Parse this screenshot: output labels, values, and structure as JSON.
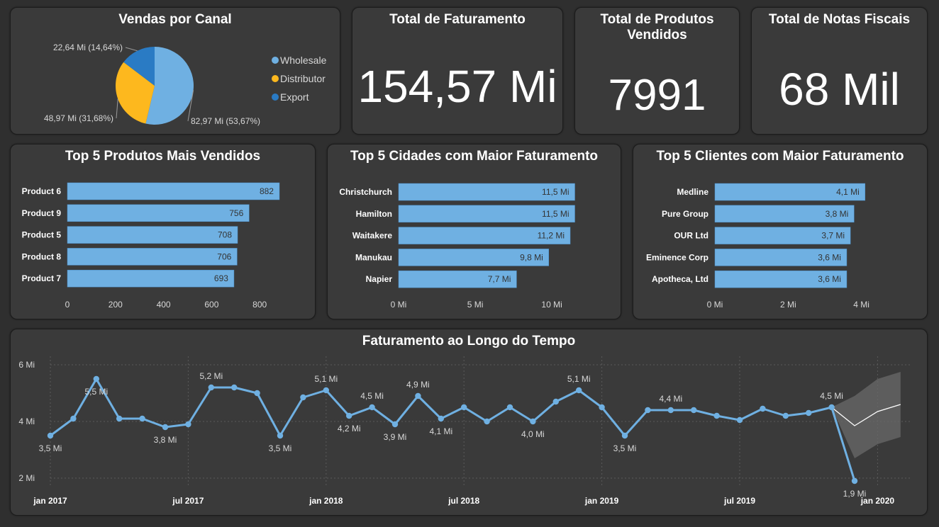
{
  "pie": {
    "title": "Vendas por Canal",
    "slices": [
      {
        "name": "Wholesale",
        "value": 82.97,
        "label": "82,97 Mi (53,67%)",
        "color": "#6fb0e2"
      },
      {
        "name": "Distributor",
        "value": 48.97,
        "label": "48,97 Mi (31,68%)",
        "color": "#fdb81e"
      },
      {
        "name": "Export",
        "value": 22.64,
        "label": "22,64 Mi (14,64%)",
        "color": "#2a7bc4"
      }
    ]
  },
  "kpis": {
    "faturamento": {
      "title": "Total de Faturamento",
      "value": "154,57 Mi"
    },
    "produtos": {
      "title_line1": "Total de Produtos",
      "title_line2": "Vendidos",
      "value": "7991"
    },
    "notas": {
      "title": "Total de Notas Fiscais",
      "value": "68 Mil"
    }
  },
  "top_produtos": {
    "title": "Top 5 Produtos Mais Vendidos",
    "categories": [
      "Product 6",
      "Product 9",
      "Product 5",
      "Product 8",
      "Product 7"
    ],
    "values": [
      882,
      756,
      708,
      706,
      693
    ],
    "value_labels": [
      "882",
      "756",
      "708",
      "706",
      "693"
    ],
    "ticks": [
      0,
      200,
      400,
      600,
      800
    ],
    "tick_labels": [
      "0",
      "200",
      "400",
      "600",
      "800"
    ]
  },
  "top_cidades": {
    "title": "Top 5 Cidades com Maior Faturamento",
    "categories": [
      "Christchurch",
      "Hamilton",
      "Waitakere",
      "Manukau",
      "Napier"
    ],
    "values": [
      11.5,
      11.5,
      11.2,
      9.8,
      7.7
    ],
    "value_labels": [
      "11,5 Mi",
      "11,5 Mi",
      "11,2 Mi",
      "9,8 Mi",
      "7,7 Mi"
    ],
    "ticks": [
      0,
      5,
      10
    ],
    "tick_labels": [
      "0 Mi",
      "5 Mi",
      "10 Mi"
    ]
  },
  "top_clientes": {
    "title": "Top 5 Clientes com Maior Faturamento",
    "categories": [
      "Medline",
      "Pure Group",
      "OUR Ltd",
      "Eminence Corp",
      "Apotheca, Ltd"
    ],
    "values": [
      4.1,
      3.8,
      3.7,
      3.6,
      3.6
    ],
    "value_labels": [
      "4,1 Mi",
      "3,8 Mi",
      "3,7 Mi",
      "3,6 Mi",
      "3,6 Mi"
    ],
    "ticks": [
      0,
      2,
      4
    ],
    "tick_labels": [
      "0 Mi",
      "2 Mi",
      "4 Mi"
    ]
  },
  "chart_data": {
    "type": "line",
    "title": "Faturamento ao Longo do Tempo",
    "x": [
      "2017-01",
      "2017-02",
      "2017-03",
      "2017-04",
      "2017-05",
      "2017-06",
      "2017-07",
      "2017-08",
      "2017-09",
      "2017-10",
      "2017-11",
      "2017-12",
      "2018-01",
      "2018-02",
      "2018-03",
      "2018-04",
      "2018-05",
      "2018-06",
      "2018-07",
      "2018-08",
      "2018-09",
      "2018-10",
      "2018-11",
      "2018-12",
      "2019-01",
      "2019-02",
      "2019-03",
      "2019-04",
      "2019-05",
      "2019-06",
      "2019-07",
      "2019-08",
      "2019-09",
      "2019-10",
      "2019-11",
      "2019-12"
    ],
    "values": [
      3.5,
      4.1,
      5.5,
      4.1,
      4.1,
      3.8,
      3.9,
      5.2,
      5.2,
      5.0,
      3.5,
      4.85,
      5.1,
      4.2,
      4.5,
      3.9,
      4.9,
      4.1,
      4.5,
      4.0,
      4.5,
      4.0,
      4.7,
      5.1,
      4.5,
      3.5,
      4.4,
      4.4,
      4.4,
      4.2,
      4.05,
      4.45,
      4.2,
      4.3,
      4.5,
      1.9
    ],
    "point_labels": [
      {
        "i": 0,
        "text": "3,5 Mi",
        "pos": "below"
      },
      {
        "i": 2,
        "text": "5,5 Mi",
        "pos": "below"
      },
      {
        "i": 5,
        "text": "3,8 Mi",
        "pos": "below"
      },
      {
        "i": 7,
        "text": "5,2 Mi",
        "pos": "above"
      },
      {
        "i": 10,
        "text": "3,5 Mi",
        "pos": "below"
      },
      {
        "i": 12,
        "text": "5,1 Mi",
        "pos": "above"
      },
      {
        "i": 13,
        "text": "4,2 Mi",
        "pos": "below"
      },
      {
        "i": 14,
        "text": "4,5 Mi",
        "pos": "above"
      },
      {
        "i": 15,
        "text": "3,9 Mi",
        "pos": "below"
      },
      {
        "i": 16,
        "text": "4,9 Mi",
        "pos": "above"
      },
      {
        "i": 17,
        "text": "4,1 Mi",
        "pos": "below"
      },
      {
        "i": 21,
        "text": "4,0 Mi",
        "pos": "below"
      },
      {
        "i": 23,
        "text": "5,1 Mi",
        "pos": "above"
      },
      {
        "i": 25,
        "text": "3,5 Mi",
        "pos": "below"
      },
      {
        "i": 27,
        "text": "4,4 Mi",
        "pos": "above"
      },
      {
        "i": 34,
        "text": "4,5 Mi",
        "pos": "above"
      },
      {
        "i": 35,
        "text": "1,9 Mi",
        "pos": "below"
      }
    ],
    "forecast": {
      "x": [
        "2019-11",
        "2019-12",
        "2020-01",
        "2020-02"
      ],
      "values": [
        4.5,
        3.85,
        4.35,
        4.6
      ],
      "upper": [
        4.5,
        4.9,
        5.5,
        5.75
      ],
      "lower": [
        4.5,
        2.7,
        3.2,
        3.45
      ]
    },
    "ylim": [
      1.5,
      6.2
    ],
    "yticks": [
      2,
      4,
      6
    ],
    "ytick_labels": [
      "2 Mi",
      "4 Mi",
      "6 Mi"
    ],
    "xticks": [
      "2017-01",
      "2017-07",
      "2018-01",
      "2018-07",
      "2019-01",
      "2019-07",
      "2020-01"
    ],
    "xtick_labels": [
      "jan 2017",
      "jul 2017",
      "jan 2018",
      "jul 2018",
      "jan 2019",
      "jul 2019",
      "jan 2020"
    ],
    "grid": true,
    "line_color": "#6fb0e2"
  },
  "colors": {
    "bar": "#6fb0e2",
    "card_bg": "#3a3a3a",
    "page_bg": "#2f2f2f"
  }
}
